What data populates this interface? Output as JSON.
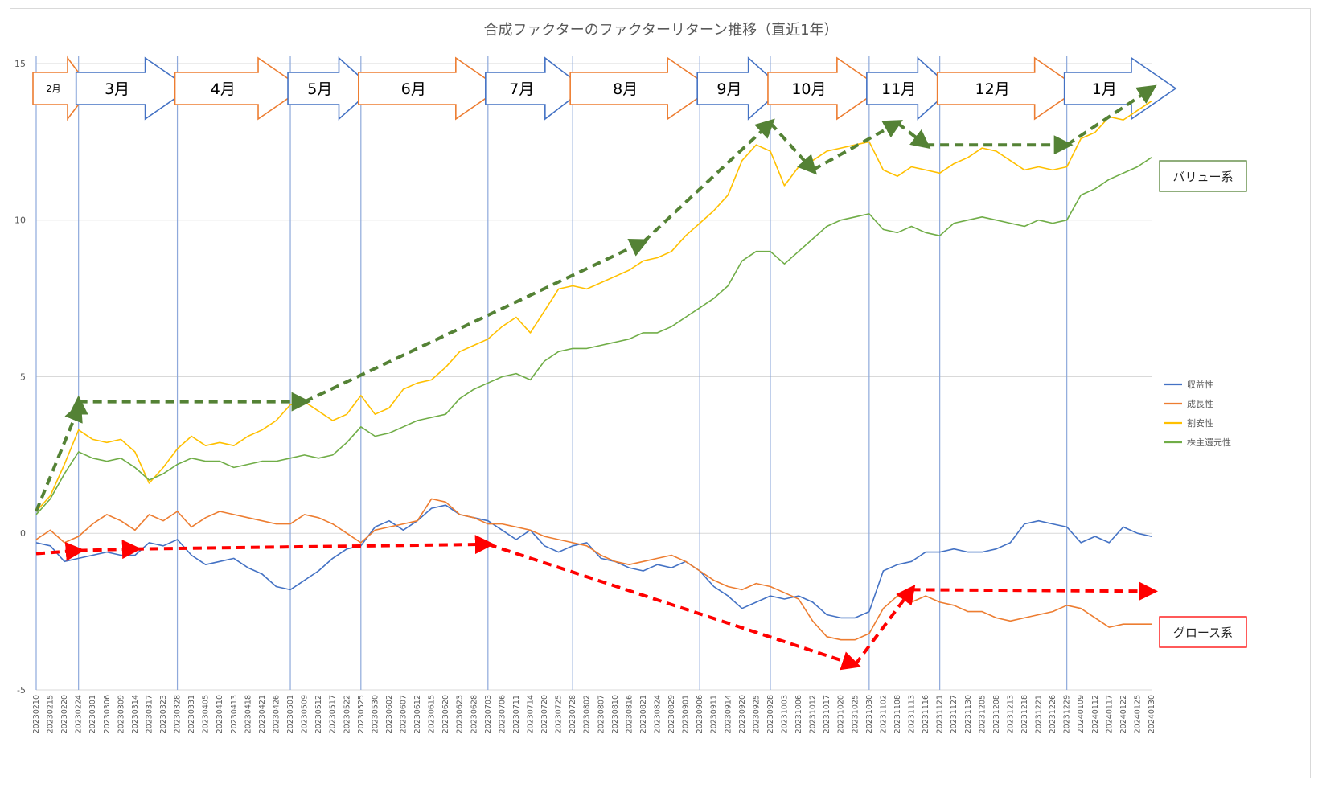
{
  "chart_data": {
    "type": "line",
    "title": "合成ファクターのファクターリターン推移（直近1年）",
    "xlabel": "",
    "ylabel": "",
    "ylim": [
      -5,
      16
    ],
    "yticks": [
      15,
      10,
      5,
      0,
      -5
    ],
    "grid": "horizontal",
    "legend_position": "right",
    "x_dates": [
      "20230210",
      "20230215",
      "20230220",
      "20230224",
      "20230301",
      "20230306",
      "20230309",
      "20230314",
      "20230317",
      "20230323",
      "20230328",
      "20230331",
      "20230405",
      "20230410",
      "20230413",
      "20230418",
      "20230421",
      "20230426",
      "20230501",
      "20230509",
      "20230512",
      "20230517",
      "20230522",
      "20230525",
      "20230530",
      "20230602",
      "20230607",
      "20230612",
      "20230615",
      "20230620",
      "20230623",
      "20230628",
      "20230703",
      "20230706",
      "20230711",
      "20230714",
      "20230720",
      "20230725",
      "20230728",
      "20230802",
      "20230807",
      "20230810",
      "20230816",
      "20230821",
      "20230824",
      "20230829",
      "20230901",
      "20230906",
      "20230911",
      "20230914",
      "20230920",
      "20230925",
      "20230928",
      "20231003",
      "20231006",
      "20231012",
      "20231017",
      "20231020",
      "20231025",
      "20231030",
      "20231102",
      "20231108",
      "20231113",
      "20231116",
      "20231121",
      "20231127",
      "20231130",
      "20231205",
      "20231208",
      "20231213",
      "20231218",
      "20231221",
      "20231226",
      "20231229",
      "20240109",
      "20240112",
      "20240117",
      "20240122",
      "20240125",
      "20240130"
    ],
    "series": [
      {
        "name": "収益性",
        "color": "#4472C4",
        "values": [
          -0.3,
          -0.4,
          -0.9,
          -0.8,
          -0.7,
          -0.6,
          -0.7,
          -0.7,
          -0.3,
          -0.4,
          -0.2,
          -0.7,
          -1.0,
          -0.9,
          -0.8,
          -1.1,
          -1.3,
          -1.7,
          -1.8,
          -1.5,
          -1.2,
          -0.8,
          -0.5,
          -0.4,
          0.2,
          0.4,
          0.1,
          0.4,
          0.8,
          0.9,
          0.6,
          0.5,
          0.4,
          0.1,
          -0.2,
          0.1,
          -0.4,
          -0.6,
          -0.4,
          -0.3,
          -0.8,
          -0.9,
          -1.1,
          -1.2,
          -1.0,
          -1.1,
          -0.9,
          -1.2,
          -1.7,
          -2.0,
          -2.4,
          -2.2,
          -2.0,
          -2.1,
          -2.0,
          -2.2,
          -2.6,
          -2.7,
          -2.7,
          -2.5,
          -1.2,
          -1.0,
          -0.9,
          -0.6,
          -0.6,
          -0.5,
          -0.6,
          -0.6,
          -0.5,
          -0.3,
          0.3,
          0.4,
          0.3,
          0.2,
          -0.3,
          -0.1,
          -0.3,
          0.2,
          0.0,
          -0.1
        ]
      },
      {
        "name": "成長性",
        "color": "#ED7D31",
        "values": [
          -0.2,
          0.1,
          -0.3,
          -0.1,
          0.3,
          0.6,
          0.4,
          0.1,
          0.6,
          0.4,
          0.7,
          0.2,
          0.5,
          0.7,
          0.6,
          0.5,
          0.4,
          0.3,
          0.3,
          0.6,
          0.5,
          0.3,
          0.0,
          -0.3,
          0.1,
          0.2,
          0.3,
          0.4,
          1.1,
          1.0,
          0.6,
          0.5,
          0.3,
          0.3,
          0.2,
          0.1,
          -0.1,
          -0.2,
          -0.3,
          -0.4,
          -0.7,
          -0.9,
          -1.0,
          -0.9,
          -0.8,
          -0.7,
          -0.9,
          -1.2,
          -1.5,
          -1.7,
          -1.8,
          -1.6,
          -1.7,
          -1.9,
          -2.1,
          -2.8,
          -3.3,
          -3.4,
          -3.4,
          -3.2,
          -2.4,
          -2.0,
          -2.2,
          -2.0,
          -2.2,
          -2.3,
          -2.5,
          -2.5,
          -2.7,
          -2.8,
          -2.7,
          -2.6,
          -2.5,
          -2.3,
          -2.4,
          -2.7,
          -3.0,
          -2.9,
          -2.9,
          -2.9
        ]
      },
      {
        "name": "割安性",
        "color": "#FFC000",
        "values": [
          0.7,
          1.2,
          2.2,
          3.3,
          3.0,
          2.9,
          3.0,
          2.6,
          1.6,
          2.1,
          2.7,
          3.1,
          2.8,
          2.9,
          2.8,
          3.1,
          3.3,
          3.6,
          4.1,
          4.2,
          3.9,
          3.6,
          3.8,
          4.4,
          3.8,
          4.0,
          4.6,
          4.8,
          4.9,
          5.3,
          5.8,
          6.0,
          6.2,
          6.6,
          6.9,
          6.4,
          7.1,
          7.8,
          7.9,
          7.8,
          8.0,
          8.2,
          8.4,
          8.7,
          8.8,
          9.0,
          9.5,
          9.9,
          10.3,
          10.8,
          11.9,
          12.4,
          12.2,
          11.1,
          11.7,
          11.9,
          12.2,
          12.3,
          12.4,
          12.5,
          11.6,
          11.4,
          11.7,
          11.6,
          11.5,
          11.8,
          12.0,
          12.3,
          12.2,
          11.9,
          11.6,
          11.7,
          11.6,
          11.7,
          12.6,
          12.8,
          13.3,
          13.2,
          13.5,
          13.8
        ]
      },
      {
        "name": "株主還元性",
        "color": "#70AD47",
        "values": [
          0.6,
          1.1,
          1.9,
          2.6,
          2.4,
          2.3,
          2.4,
          2.1,
          1.7,
          1.9,
          2.2,
          2.4,
          2.3,
          2.3,
          2.1,
          2.2,
          2.3,
          2.3,
          2.4,
          2.5,
          2.4,
          2.5,
          2.9,
          3.4,
          3.1,
          3.2,
          3.4,
          3.6,
          3.7,
          3.8,
          4.3,
          4.6,
          4.8,
          5.0,
          5.1,
          4.9,
          5.5,
          5.8,
          5.9,
          5.9,
          6.0,
          6.1,
          6.2,
          6.4,
          6.4,
          6.6,
          6.9,
          7.2,
          7.5,
          7.9,
          8.7,
          9.0,
          9.0,
          8.6,
          9.0,
          9.4,
          9.8,
          10.0,
          10.1,
          10.2,
          9.7,
          9.6,
          9.8,
          9.6,
          9.5,
          9.9,
          10.0,
          10.1,
          10.0,
          9.9,
          9.8,
          10.0,
          9.9,
          10.0,
          10.8,
          11.0,
          11.3,
          11.5,
          11.7,
          12.0
        ]
      }
    ],
    "month_banners": [
      {
        "label": "2月",
        "style": "orange",
        "from": 0,
        "to": 3
      },
      {
        "label": "3月",
        "style": "blue",
        "from": 3,
        "to": 10
      },
      {
        "label": "4月",
        "style": "orange",
        "from": 10,
        "to": 18
      },
      {
        "label": "5月",
        "style": "blue",
        "from": 18,
        "to": 23
      },
      {
        "label": "6月",
        "style": "orange",
        "from": 23,
        "to": 32
      },
      {
        "label": "7月",
        "style": "blue",
        "from": 32,
        "to": 38
      },
      {
        "label": "8月",
        "style": "orange",
        "from": 38,
        "to": 47
      },
      {
        "label": "9月",
        "style": "blue",
        "from": 47,
        "to": 52
      },
      {
        "label": "10月",
        "style": "orange",
        "from": 52,
        "to": 59
      },
      {
        "label": "11月",
        "style": "blue",
        "from": 59,
        "to": 64
      },
      {
        "label": "12月",
        "style": "orange",
        "from": 64,
        "to": 73
      },
      {
        "label": "1月",
        "style": "blue",
        "from": 73,
        "to": 79
      }
    ],
    "month_dividers": [
      3,
      10,
      18,
      23,
      32,
      38,
      47,
      52,
      59,
      64,
      73
    ],
    "annotations": [
      {
        "label": "バリュー系",
        "color": "#548235",
        "trend_points": [
          [
            0,
            0.7
          ],
          [
            3,
            4.0
          ],
          [
            3,
            4.2
          ],
          [
            19,
            4.2
          ],
          [
            43,
            9.3
          ],
          [
            52,
            13.1
          ],
          [
            55,
            11.6
          ],
          [
            61,
            13.1
          ],
          [
            63,
            12.4
          ],
          [
            73,
            12.4
          ],
          [
            79,
            14.2
          ]
        ]
      },
      {
        "label": "グロース系",
        "color": "#FF0000",
        "trend_points": [
          [
            0,
            -0.65
          ],
          [
            3,
            -0.55
          ],
          [
            7,
            -0.5
          ],
          [
            32,
            -0.35
          ],
          [
            58,
            -4.2
          ],
          [
            62,
            -1.8
          ],
          [
            79,
            -1.85
          ]
        ]
      }
    ],
    "colors": {
      "banner_orange": "#ED7D31",
      "banner_blue": "#4472C4",
      "divider": "#8EA9DB",
      "grid": "#D9D9D9",
      "axis_text": "#595959"
    }
  }
}
